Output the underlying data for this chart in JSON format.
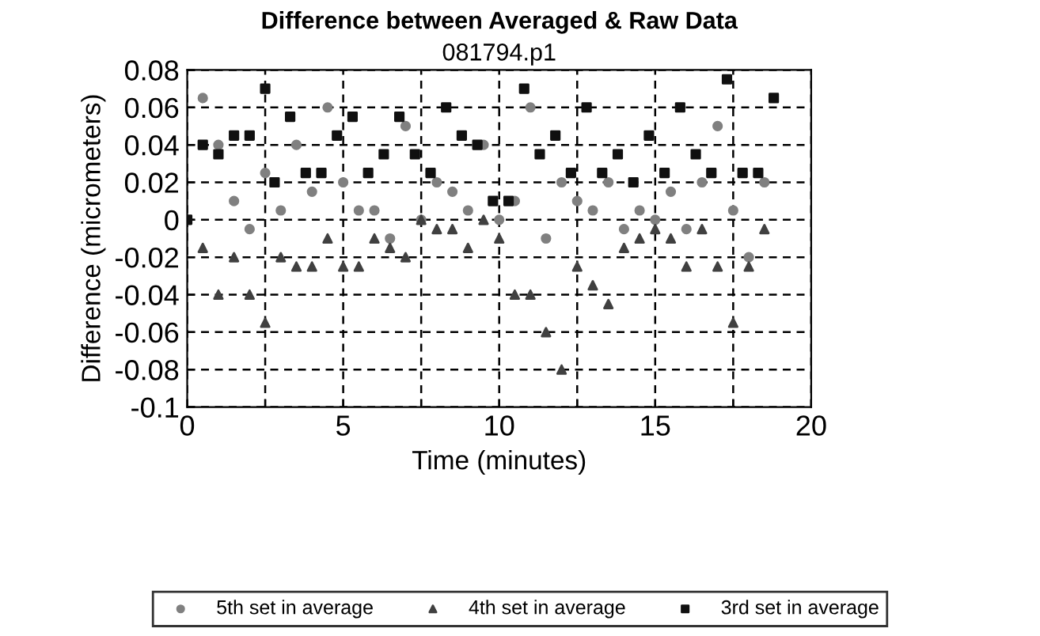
{
  "chart_data": {
    "type": "scatter",
    "title": "Difference between Averaged & Raw Data",
    "subtitle": "081794.p1",
    "xlabel": "Time (minutes)",
    "ylabel": "Difference (micrometers)",
    "xlim": [
      0,
      20
    ],
    "xticks": [
      0,
      {
        "value": 2.5,
        "label": null
      },
      5,
      {
        "value": 7.5,
        "label": null
      },
      10,
      {
        "value": 12.5,
        "label": null
      },
      15,
      {
        "value": 17.5,
        "label": null
      },
      20
    ],
    "ylim": [
      -0.1,
      0.08
    ],
    "yticks": [
      -0.1,
      -0.08,
      -0.06,
      -0.04,
      -0.02,
      0,
      0.02,
      0.04,
      0.06,
      0.08
    ],
    "grid": true,
    "legend": "bottom",
    "series": [
      {
        "name": "5th set in average",
        "color": "#808080",
        "marker": "circle",
        "x": [
          0.5,
          1,
          1.5,
          2,
          2.5,
          3,
          3.5,
          4,
          4.5,
          5,
          5.5,
          6,
          6.5,
          7,
          7.5,
          8,
          8.5,
          9,
          9.5,
          10,
          10.5,
          11,
          11.5,
          12,
          12.5,
          13,
          13.5,
          14,
          14.5,
          15,
          15.5,
          16,
          16.5,
          17,
          17.5,
          18,
          18.5
        ],
        "values": [
          0.065,
          0.04,
          0.01,
          -0.005,
          0.025,
          0.005,
          0.04,
          0.015,
          0.06,
          0.02,
          0.005,
          0.005,
          -0.01,
          0.05,
          0.0,
          0.02,
          0.015,
          0.005,
          0.04,
          0.0,
          0.01,
          0.06,
          -0.01,
          0.02,
          0.01,
          0.005,
          0.02,
          -0.005,
          0.005,
          0.0,
          0.015,
          -0.005,
          0.02,
          0.05,
          0.005,
          -0.02,
          0.02
        ]
      },
      {
        "name": "4th set in average",
        "color": "#404040",
        "marker": "triangle",
        "x": [
          0.5,
          1,
          1.5,
          2,
          2.5,
          3,
          3.5,
          4,
          4.5,
          5,
          5.5,
          6,
          6.5,
          7,
          7.5,
          8,
          8.5,
          9,
          9.5,
          10,
          10.5,
          11,
          11.5,
          12,
          12.5,
          13,
          13.5,
          14,
          14.5,
          15,
          15.5,
          16,
          16.5,
          17,
          17.5,
          18,
          18.5
        ],
        "values": [
          -0.015,
          -0.04,
          -0.02,
          -0.04,
          -0.055,
          -0.02,
          -0.025,
          -0.025,
          -0.01,
          -0.025,
          -0.025,
          -0.01,
          -0.015,
          -0.02,
          0.0,
          -0.005,
          -0.005,
          -0.015,
          0.0,
          -0.01,
          -0.04,
          -0.04,
          -0.06,
          -0.08,
          -0.025,
          -0.035,
          -0.045,
          -0.015,
          -0.01,
          -0.005,
          -0.01,
          -0.025,
          -0.005,
          -0.025,
          -0.055,
          -0.025,
          -0.005
        ]
      },
      {
        "name": "3rd set in average",
        "color": "#101010",
        "marker": "square",
        "x": [
          0,
          0.5,
          1,
          1.5,
          2,
          2.5,
          2.8,
          3.3,
          3.8,
          4.3,
          4.8,
          5.3,
          5.8,
          6.3,
          6.8,
          7.3,
          7.8,
          8.3,
          8.8,
          9.3,
          9.8,
          10.3,
          10.8,
          11.3,
          11.8,
          12.3,
          12.8,
          13.3,
          13.8,
          14.3,
          14.8,
          15.3,
          15.8,
          16.3,
          16.8,
          17.3,
          17.8,
          18.3,
          18.8
        ],
        "values": [
          0,
          0.04,
          0.035,
          0.045,
          0.045,
          0.07,
          0.02,
          0.055,
          0.025,
          0.025,
          0.045,
          0.055,
          0.025,
          0.035,
          0.055,
          0.035,
          0.025,
          0.06,
          0.045,
          0.04,
          0.01,
          0.01,
          0.07,
          0.035,
          0.045,
          0.025,
          0.06,
          0.025,
          0.035,
          0.02,
          0.045,
          0.025,
          0.06,
          0.035,
          0.025,
          0.075,
          0.025,
          0.025,
          0.065
        ]
      }
    ]
  }
}
